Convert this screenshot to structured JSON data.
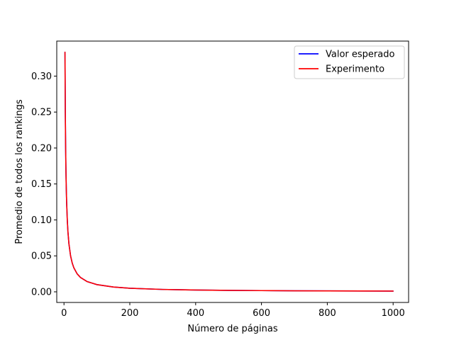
{
  "chart_data": {
    "type": "line",
    "title": "",
    "xlabel": "Número de páginas",
    "ylabel": "Promedio de todos los rankings",
    "xlim": [
      -22,
      1047
    ],
    "ylim": [
      -0.0148,
      0.3487
    ],
    "xticks": [
      0,
      200,
      400,
      600,
      800,
      1000
    ],
    "xtick_labels": [
      "0",
      "200",
      "400",
      "600",
      "800",
      "1000"
    ],
    "yticks": [
      0.0,
      0.05,
      0.1,
      0.15,
      0.2,
      0.25,
      0.3
    ],
    "ytick_labels": [
      "0.00",
      "0.05",
      "0.10",
      "0.15",
      "0.20",
      "0.25",
      "0.30"
    ],
    "grid": false,
    "legend_position": "top-right",
    "series": [
      {
        "name": "Valor esperado",
        "color": "#0000ff",
        "x": [
          3,
          4,
          5,
          6,
          7,
          8,
          10,
          12,
          15,
          20,
          25,
          30,
          40,
          50,
          70,
          100,
          150,
          200,
          300,
          400,
          500,
          600,
          700,
          800,
          900,
          1000
        ],
        "y": [
          0.3333,
          0.25,
          0.2,
          0.1667,
          0.1429,
          0.125,
          0.1,
          0.0833,
          0.0667,
          0.05,
          0.04,
          0.0333,
          0.025,
          0.02,
          0.0143,
          0.01,
          0.0067,
          0.005,
          0.0033,
          0.0025,
          0.002,
          0.0017,
          0.0014,
          0.0013,
          0.0011,
          0.001
        ]
      },
      {
        "name": "Experimento",
        "color": "#ff0000",
        "x": [
          3,
          4,
          5,
          6,
          7,
          8,
          10,
          12,
          15,
          20,
          25,
          30,
          40,
          50,
          70,
          100,
          150,
          200,
          300,
          400,
          500,
          600,
          700,
          800,
          900,
          1000
        ],
        "y": [
          0.3333,
          0.25,
          0.2,
          0.1667,
          0.1429,
          0.125,
          0.1,
          0.0833,
          0.0667,
          0.05,
          0.04,
          0.0333,
          0.025,
          0.02,
          0.0143,
          0.01,
          0.0067,
          0.005,
          0.0033,
          0.0025,
          0.002,
          0.0017,
          0.0014,
          0.0013,
          0.0011,
          0.001
        ]
      }
    ]
  }
}
